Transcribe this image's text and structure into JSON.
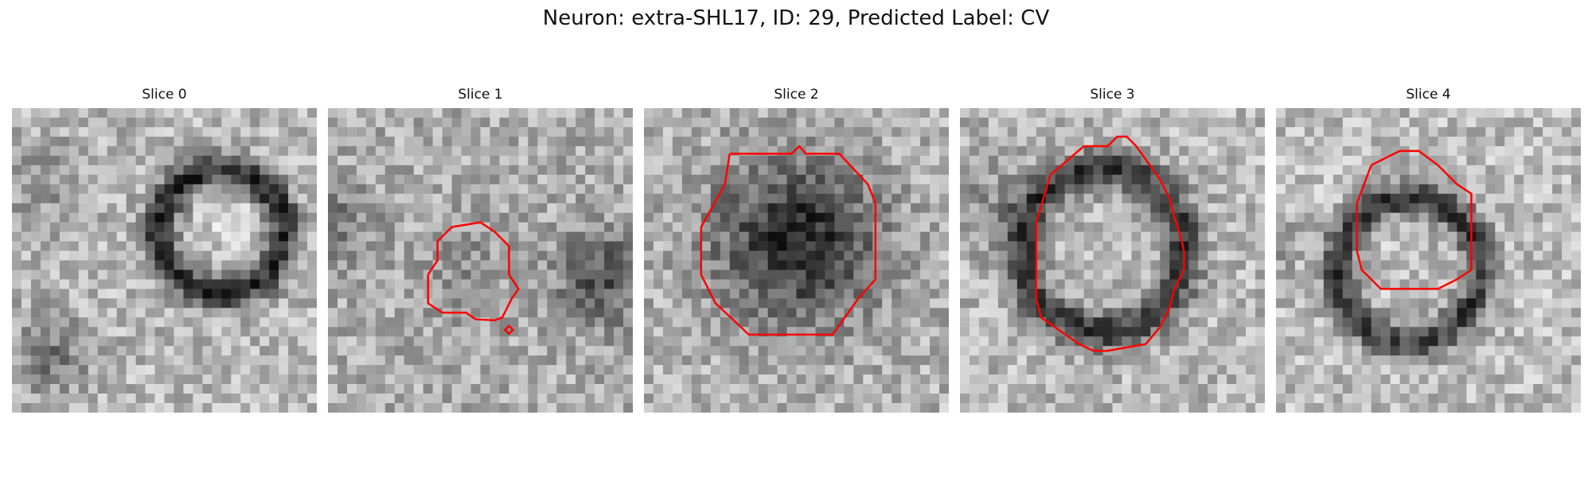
{
  "figure": {
    "title": "Neuron: extra-SHL17, ID: 29, Predicted Label: CV",
    "colormap": "gray",
    "contour_color": "#ff0000"
  },
  "panels": [
    {
      "title": "Slice 0",
      "has_contour": false
    },
    {
      "title": "Slice 1",
      "has_contour": true
    },
    {
      "title": "Slice 2",
      "has_contour": true
    },
    {
      "title": "Slice 3",
      "has_contour": true
    },
    {
      "title": "Slice 4",
      "has_contour": true
    }
  ]
}
